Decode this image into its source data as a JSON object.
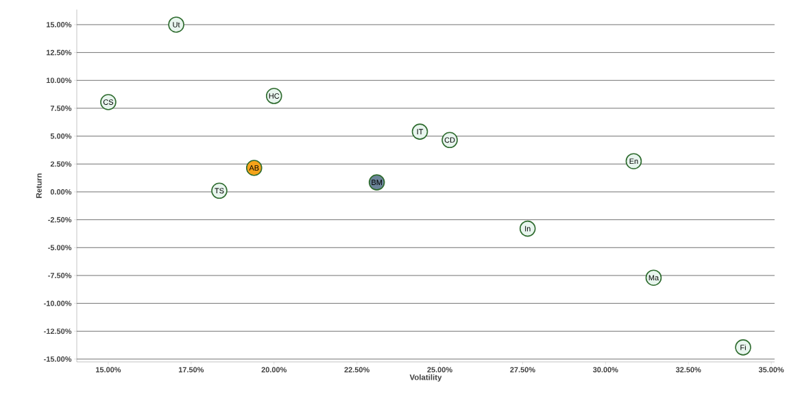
{
  "chart_data": {
    "type": "scatter",
    "xlabel": "Volatility",
    "ylabel": "Return",
    "xlim": [
      14.05,
      35.1
    ],
    "ylim": [
      -15.25,
      16.35
    ],
    "xticks": [
      {
        "value": 15,
        "label": "15.00%"
      },
      {
        "value": 17.5,
        "label": "17.50%"
      },
      {
        "value": 20,
        "label": "20.00%"
      },
      {
        "value": 22.5,
        "label": "22.50%"
      },
      {
        "value": 25,
        "label": "25.00%"
      },
      {
        "value": 27.5,
        "label": "27.50%"
      },
      {
        "value": 30,
        "label": "30.00%"
      },
      {
        "value": 32.5,
        "label": "32.50%"
      },
      {
        "value": 35,
        "label": "35.00%"
      }
    ],
    "yticks": [
      {
        "value": -15,
        "label": "-15.00%"
      },
      {
        "value": -12.5,
        "label": "-12.50%"
      },
      {
        "value": -10,
        "label": "-10.00%"
      },
      {
        "value": -7.5,
        "label": "-7.50%"
      },
      {
        "value": -5,
        "label": "-5.00%"
      },
      {
        "value": -2.5,
        "label": "-2.50%"
      },
      {
        "value": 0,
        "label": "0.00%"
      },
      {
        "value": 2.5,
        "label": "2.50%"
      },
      {
        "value": 5,
        "label": "5.00%"
      },
      {
        "value": 7.5,
        "label": "7.50%"
      },
      {
        "value": 10,
        "label": "10.00%"
      },
      {
        "value": 12.5,
        "label": "12.50%"
      },
      {
        "value": 15,
        "label": "15.00%"
      }
    ],
    "grid": "y",
    "marker": "circle",
    "x": [
      17.05,
      15.0,
      20.0,
      24.4,
      25.3,
      30.85,
      19.4,
      23.1,
      18.35,
      27.65,
      31.45,
      34.15
    ],
    "values": [
      15.0,
      8.05,
      8.6,
      5.4,
      4.65,
      2.75,
      2.15,
      0.85,
      0.1,
      -3.3,
      -7.7,
      -13.95
    ],
    "colors": [
      "#e8f5ee",
      "#e8f5ee",
      "#e8f5ee",
      "#e8f5ee",
      "#e8f5ee",
      "#e8f5ee",
      "#f5a31a",
      "#6b8499",
      "#e8f5ee",
      "#e8f5ee",
      "#e8f5ee",
      "#e8f5ee"
    ],
    "annotations": [
      {
        "text": "Ut",
        "x": 17.05,
        "y": 15.0
      },
      {
        "text": "CS",
        "x": 15.0,
        "y": 8.05
      },
      {
        "text": "HC",
        "x": 20.0,
        "y": 8.6
      },
      {
        "text": "IT",
        "x": 24.4,
        "y": 5.4
      },
      {
        "text": "CD",
        "x": 25.3,
        "y": 4.65
      },
      {
        "text": "En",
        "x": 30.85,
        "y": 2.75
      },
      {
        "text": "AB",
        "x": 19.4,
        "y": 2.15
      },
      {
        "text": "BM",
        "x": 23.1,
        "y": 0.85
      },
      {
        "text": "TS",
        "x": 18.35,
        "y": 0.1
      },
      {
        "text": "In",
        "x": 27.65,
        "y": -3.3
      },
      {
        "text": "Ma",
        "x": 31.45,
        "y": -7.7
      },
      {
        "text": "Fi",
        "x": 34.15,
        "y": -13.95
      }
    ]
  }
}
